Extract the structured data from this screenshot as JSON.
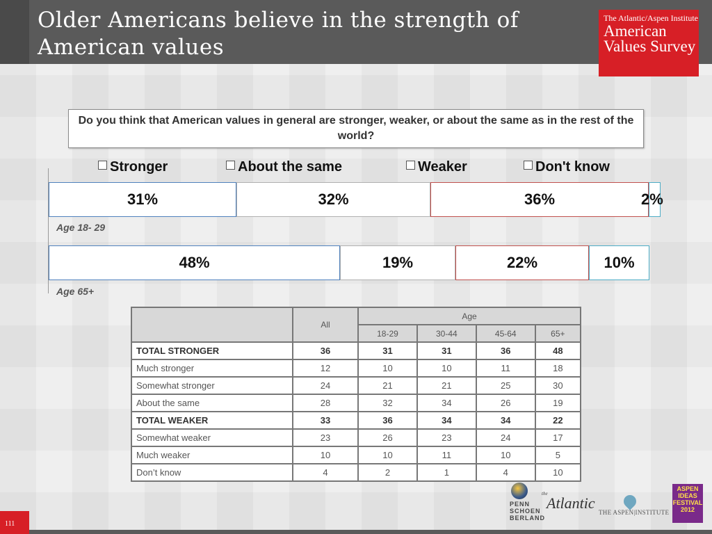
{
  "slide": {
    "title": "Older Americans believe in the strength of American values",
    "page_number": "111"
  },
  "brand": {
    "kicker": "The Atlantic/Aspen Institute",
    "name": "American Values Survey"
  },
  "question": "Do you think that American values in general are stronger, weaker, or about the same as in the rest of the world?",
  "legend": [
    "Stronger",
    "About the same",
    "Weaker",
    "Don't know"
  ],
  "chart_data": {
    "type": "bar",
    "stacked": true,
    "orientation": "horizontal",
    "categories": [
      "Age 18- 29",
      "Age 65+"
    ],
    "series": [
      {
        "name": "Stronger",
        "values": [
          31,
          48
        ],
        "labels": [
          "31%",
          "48%"
        ],
        "color": "#4f81bd"
      },
      {
        "name": "About the same",
        "values": [
          32,
          19
        ],
        "labels": [
          "32%",
          "19%"
        ],
        "color": "#b0b0b0"
      },
      {
        "name": "Weaker",
        "values": [
          36,
          22
        ],
        "labels": [
          "36%",
          "22%"
        ],
        "color": "#c0504d"
      },
      {
        "name": "Don't know",
        "values": [
          2,
          10
        ],
        "labels": [
          "2%",
          "10%"
        ],
        "color": "#4bacc6"
      }
    ],
    "legend_position": "top",
    "grid": false
  },
  "table": {
    "group_header": "Age",
    "all_header": "All",
    "age_headers": [
      "18-29",
      "30-44",
      "45-64",
      "65+"
    ],
    "rows": [
      {
        "label": "TOTAL STRONGER",
        "bold": true,
        "values": [
          "36",
          "31",
          "31",
          "36",
          "48"
        ]
      },
      {
        "label": "Much stronger",
        "bold": false,
        "values": [
          "12",
          "10",
          "10",
          "11",
          "18"
        ]
      },
      {
        "label": "Somewhat stronger",
        "bold": false,
        "values": [
          "24",
          "21",
          "21",
          "25",
          "30"
        ]
      },
      {
        "label": "About the same",
        "bold": false,
        "values": [
          "28",
          "32",
          "34",
          "26",
          "19"
        ]
      },
      {
        "label": "TOTAL WEAKER",
        "bold": true,
        "values": [
          "33",
          "36",
          "34",
          "34",
          "22"
        ]
      },
      {
        "label": "Somewhat weaker",
        "bold": false,
        "values": [
          "23",
          "26",
          "23",
          "24",
          "17"
        ]
      },
      {
        "label": "Much weaker",
        "bold": false,
        "values": [
          "10",
          "10",
          "11",
          "10",
          "5"
        ]
      },
      {
        "label": "Don’t know",
        "bold": false,
        "values": [
          "4",
          "2",
          "1",
          "4",
          "10"
        ]
      }
    ]
  },
  "logos": {
    "psb": "PENN SCHOEN BERLAND",
    "atlantic_small": "the",
    "atlantic": "Atlantic",
    "aspen": "THE ASPEN|INSTITUTE",
    "festival": "ASPEN IDEAS FESTIVAL 2012"
  }
}
